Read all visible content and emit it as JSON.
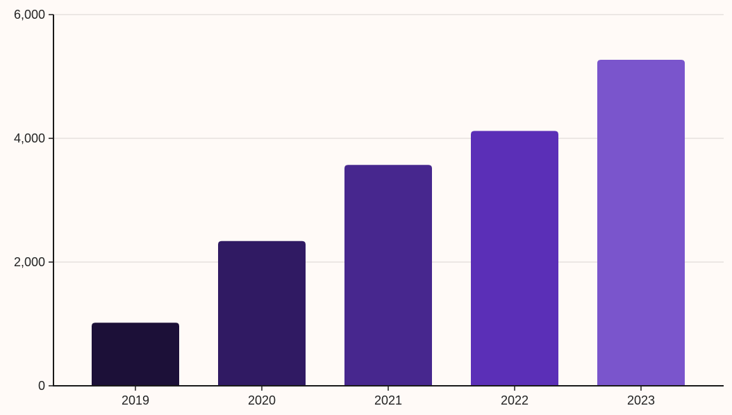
{
  "chart_data": {
    "type": "bar",
    "title": "",
    "xlabel": "",
    "ylabel": "",
    "categories": [
      "2019",
      "2020",
      "2021",
      "2022",
      "2023"
    ],
    "values": [
      1020,
      2340,
      3570,
      4120,
      5270
    ],
    "ylim": [
      0,
      6000
    ],
    "yticks": [
      0,
      2000,
      4000,
      6000
    ],
    "ytick_labels": [
      "0",
      "2,000",
      "4,000",
      "6,000"
    ],
    "grid": true,
    "legend": "none",
    "colors": [
      "#1c1038",
      "#301a63",
      "#47278e",
      "#5b2fb7",
      "#7a55cc"
    ]
  }
}
